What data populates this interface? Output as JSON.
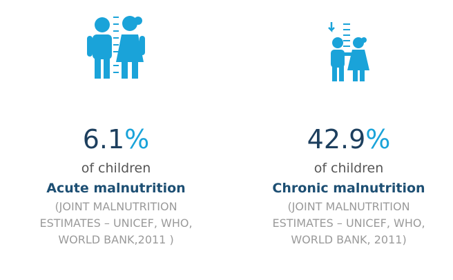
{
  "items": [
    {
      "value": "6.1",
      "unit": "%",
      "subject": "of children",
      "label": "Acute malnutrition",
      "source": [
        "(JOINT MALNUTRITION",
        "ESTIMATES – UNICEF, WHO,",
        "WORLD BANK,2011 )"
      ]
    },
    {
      "value": "42.9",
      "unit": "%",
      "subject": "of children",
      "label": "Chronic malnutrition",
      "source": [
        "(JOINT MALNUTRITION",
        "ESTIMATES – UNICEF, WHO,",
        "WORLD BANK, 2011)"
      ]
    }
  ]
}
